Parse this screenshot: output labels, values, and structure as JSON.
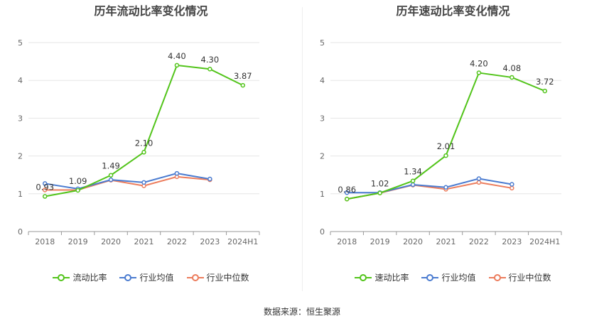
{
  "source_label": "数据来源：恒生聚源",
  "chart_data": [
    {
      "type": "line",
      "title": "历年流动比率变化情况",
      "categories": [
        "2018",
        "2019",
        "2020",
        "2021",
        "2022",
        "2023",
        "2024H1"
      ],
      "ylim": [
        0,
        5
      ],
      "yticks": [
        0,
        1,
        2,
        3,
        4,
        5
      ],
      "grid": true,
      "legend_position": "bottom",
      "series": [
        {
          "name": "流动比率",
          "color": "#52c41a",
          "values": [
            0.93,
            1.09,
            1.49,
            2.1,
            4.4,
            4.3,
            3.87
          ],
          "labels": [
            "0.93",
            "1.09",
            "1.49",
            "2.10",
            "4.40",
            "4.30",
            "3.87"
          ]
        },
        {
          "name": "行业均值",
          "color": "#4a7bd0",
          "values": [
            1.27,
            1.13,
            1.37,
            1.3,
            1.54,
            1.39,
            null
          ]
        },
        {
          "name": "行业中位数",
          "color": "#ec7c5c",
          "values": [
            1.1,
            1.1,
            1.36,
            1.21,
            1.45,
            1.37,
            null
          ]
        }
      ]
    },
    {
      "type": "line",
      "title": "历年速动比率变化情况",
      "categories": [
        "2018",
        "2019",
        "2020",
        "2021",
        "2022",
        "2023",
        "2024H1"
      ],
      "ylim": [
        0,
        5
      ],
      "yticks": [
        0,
        1,
        2,
        3,
        4,
        5
      ],
      "grid": true,
      "legend_position": "bottom",
      "series": [
        {
          "name": "速动比率",
          "color": "#52c41a",
          "values": [
            0.86,
            1.02,
            1.34,
            2.01,
            4.2,
            4.08,
            3.72
          ],
          "labels": [
            "0.86",
            "1.02",
            "1.34",
            "2.01",
            "4.20",
            "4.08",
            "3.72"
          ]
        },
        {
          "name": "行业均值",
          "color": "#4a7bd0",
          "values": [
            1.03,
            1.03,
            1.24,
            1.17,
            1.4,
            1.25,
            null
          ]
        },
        {
          "name": "行业中位数",
          "color": "#ec7c5c",
          "values": [
            0.86,
            1.02,
            1.23,
            1.12,
            1.3,
            1.15,
            null
          ]
        }
      ]
    }
  ]
}
